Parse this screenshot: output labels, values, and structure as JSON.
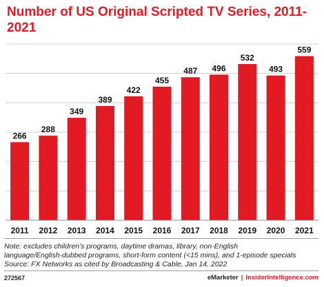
{
  "chart_data": {
    "type": "bar",
    "title": "Number of US Original Scripted TV Series, 2011-2021",
    "categories": [
      "2011",
      "2012",
      "2013",
      "2014",
      "2015",
      "2016",
      "2017",
      "2018",
      "2019",
      "2020",
      "2021"
    ],
    "values": [
      266,
      288,
      349,
      389,
      422,
      455,
      487,
      496,
      532,
      493,
      559
    ],
    "xlabel": "",
    "ylabel": "",
    "ylim": [
      0,
      600
    ],
    "grid": "horizontal",
    "bar_color": "#e21a23",
    "gridline_color": "#cccccc"
  },
  "notes": {
    "line1": "Note: excludes children's programs, daytime dramas, library, non-English",
    "line2": "language/English-dubbed programs, short-form content (<15 mins), and 1-episode specials",
    "line3": "Source: FX Networks as cited by Broadcasting & Cable, Jan 14, 2022"
  },
  "footer": {
    "id": "272567",
    "brand": "eMarketer",
    "separator": "|",
    "site": "InsiderIntelligence.com"
  }
}
